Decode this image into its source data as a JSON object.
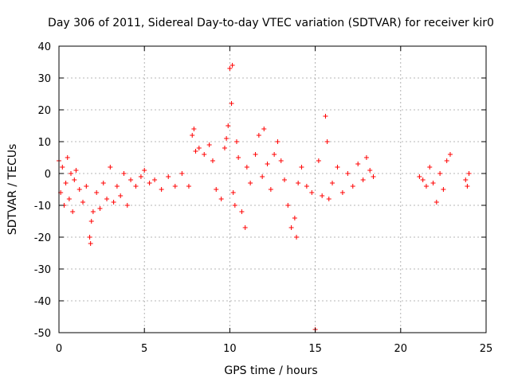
{
  "chart_data": {
    "type": "scatter",
    "title": "Day 306 of 2011, Sidereal Day-to-day VTEC variation (SDTVAR) for receiver kir0",
    "xlabel": "GPS time / hours",
    "ylabel": "SDTVAR / TECUs",
    "xlim": [
      0,
      25
    ],
    "ylim": [
      -50,
      40
    ],
    "xticks": [
      0,
      5,
      10,
      15,
      20,
      25
    ],
    "yticks": [
      -50,
      -40,
      -30,
      -20,
      -10,
      0,
      10,
      20,
      30,
      40
    ],
    "grid": true,
    "marker": "plus",
    "color": "#ff0000",
    "series": [
      {
        "name": "kir0",
        "x": [
          0.0,
          0.1,
          0.2,
          0.3,
          0.4,
          0.5,
          0.6,
          0.7,
          0.8,
          0.9,
          1.0,
          1.2,
          1.4,
          1.6,
          1.8,
          1.85,
          1.9,
          2.0,
          2.2,
          2.4,
          2.6,
          2.8,
          3.0,
          3.2,
          3.4,
          3.6,
          3.8,
          4.0,
          4.2,
          4.5,
          4.8,
          5.0,
          5.3,
          5.6,
          6.0,
          6.4,
          6.8,
          7.2,
          7.6,
          7.8,
          7.9,
          8.0,
          8.2,
          8.5,
          8.8,
          9.0,
          9.2,
          9.5,
          9.7,
          9.8,
          9.9,
          10.0,
          10.1,
          10.15,
          10.2,
          10.3,
          10.4,
          10.5,
          10.7,
          10.9,
          11.0,
          11.2,
          11.5,
          11.7,
          11.9,
          12.0,
          12.2,
          12.4,
          12.6,
          12.8,
          13.0,
          13.2,
          13.4,
          13.6,
          13.8,
          13.9,
          14.0,
          14.2,
          14.5,
          14.8,
          15.0,
          15.2,
          15.4,
          15.6,
          15.7,
          15.8,
          16.0,
          16.3,
          16.6,
          16.9,
          17.2,
          17.5,
          17.8,
          18.0,
          18.2,
          18.4,
          21.1,
          21.3,
          21.5,
          21.7,
          21.9,
          22.1,
          22.3,
          22.5,
          22.7,
          22.9,
          23.8,
          23.9,
          24.0
        ],
        "y": [
          4,
          -6,
          2,
          -10,
          -3,
          5,
          -8,
          0,
          -12,
          -2,
          1,
          -5,
          -9,
          -4,
          -20,
          -22,
          -15,
          -12,
          -6,
          -11,
          -3,
          -8,
          2,
          -9,
          -4,
          -7,
          0,
          -10,
          -2,
          -4,
          -1,
          1,
          -3,
          -2,
          -5,
          -1,
          -4,
          0,
          -4,
          12,
          14,
          7,
          8,
          6,
          9,
          4,
          -5,
          -8,
          8,
          11,
          15,
          33,
          22,
          34,
          -6,
          -10,
          10,
          5,
          -12,
          -17,
          2,
          -3,
          6,
          12,
          -1,
          14,
          3,
          -5,
          6,
          10,
          4,
          -2,
          -10,
          -17,
          -14,
          -20,
          -3,
          2,
          -4,
          -6,
          -49,
          4,
          -7,
          18,
          10,
          -8,
          -3,
          2,
          -6,
          0,
          -4,
          3,
          -2,
          5,
          1,
          -1,
          -1,
          -2,
          -4,
          2,
          -3,
          -9,
          0,
          -5,
          4,
          6,
          -2,
          -4,
          0
        ]
      }
    ]
  }
}
